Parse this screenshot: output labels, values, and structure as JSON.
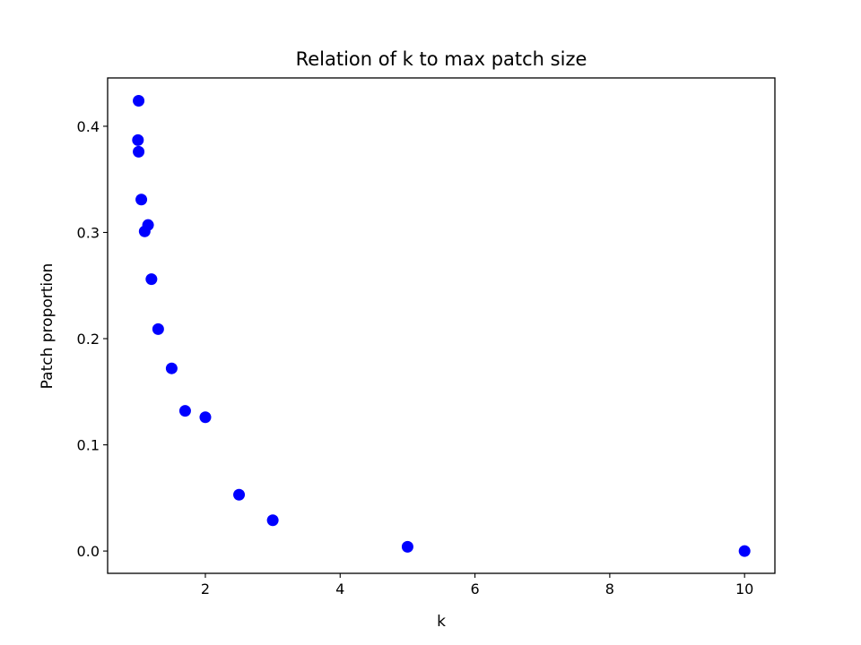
{
  "chart_data": {
    "type": "scatter",
    "title": "Relation of k to max patch size",
    "xlabel": "k",
    "ylabel": "Patch proportion",
    "xlim": [
      0.55,
      10.45
    ],
    "ylim": [
      -0.021,
      0.4455
    ],
    "x_ticks": [
      2,
      4,
      6,
      8,
      10
    ],
    "y_ticks": [
      0.0,
      0.1,
      0.2,
      0.3,
      0.4
    ],
    "x_tick_labels": [
      "2",
      "4",
      "6",
      "8",
      "10"
    ],
    "y_tick_labels": [
      "0.0",
      "0.1",
      "0.2",
      "0.3",
      "0.4"
    ],
    "grid": false,
    "marker_color": "#0000ff",
    "points": [
      {
        "x": 1.01,
        "y": 0.424
      },
      {
        "x": 1.0,
        "y": 0.387
      },
      {
        "x": 1.01,
        "y": 0.376
      },
      {
        "x": 1.05,
        "y": 0.331
      },
      {
        "x": 1.15,
        "y": 0.307
      },
      {
        "x": 1.1,
        "y": 0.301
      },
      {
        "x": 1.2,
        "y": 0.256
      },
      {
        "x": 1.3,
        "y": 0.209
      },
      {
        "x": 1.5,
        "y": 0.172
      },
      {
        "x": 1.7,
        "y": 0.132
      },
      {
        "x": 2.0,
        "y": 0.126
      },
      {
        "x": 2.5,
        "y": 0.053
      },
      {
        "x": 3.0,
        "y": 0.029
      },
      {
        "x": 5.0,
        "y": 0.004
      },
      {
        "x": 10.0,
        "y": 0.0
      }
    ]
  }
}
